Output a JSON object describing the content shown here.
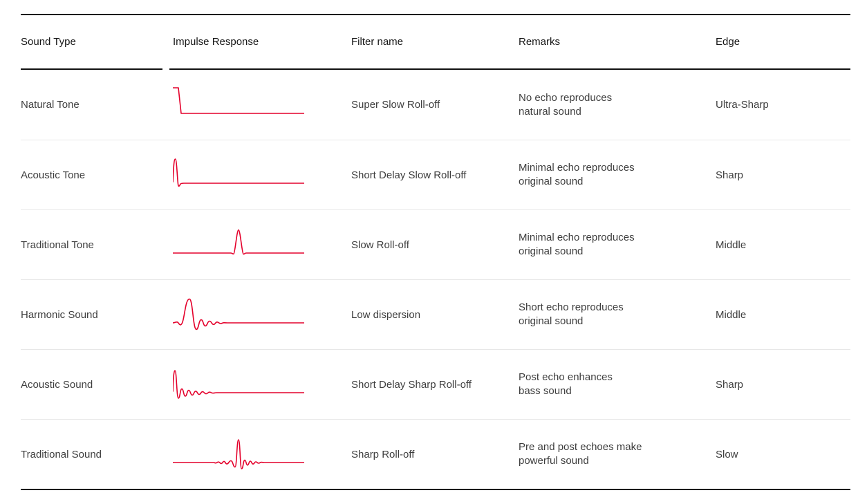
{
  "accent_color": "#e4002b",
  "table": {
    "headers": {
      "sound_type": "Sound Type",
      "impulse_response": "Impulse Response",
      "filter_name": "Filter name",
      "remarks": "Remarks",
      "edge": "Edge"
    },
    "rows": [
      {
        "sound_type": "Natural Tone",
        "impulse_icon": "step-down",
        "filter_name": "Super Slow Roll-off",
        "remarks": [
          "No echo reproduces",
          "natural sound"
        ],
        "edge": "Ultra-Sharp"
      },
      {
        "sound_type": "Acoustic Tone",
        "impulse_icon": "left-spike",
        "filter_name": "Short Delay Slow Roll-off",
        "remarks": [
          "Minimal echo reproduces",
          "original sound"
        ],
        "edge": "Sharp"
      },
      {
        "sound_type": "Traditional Tone",
        "impulse_icon": "center-spike",
        "filter_name": "Slow Roll-off",
        "remarks": [
          "Minimal echo reproduces",
          "original sound"
        ],
        "edge": "Middle"
      },
      {
        "sound_type": "Harmonic Sound",
        "impulse_icon": "left-sinc-ring",
        "filter_name": "Low dispersion",
        "remarks": [
          "Short echo reproduces",
          "original sound"
        ],
        "edge": "Middle"
      },
      {
        "sound_type": "Acoustic Sound",
        "impulse_icon": "left-spike-ring",
        "filter_name": "Short Delay Sharp Roll-off",
        "remarks": [
          "Post echo enhances",
          "bass sound"
        ],
        "edge": "Sharp"
      },
      {
        "sound_type": "Traditional Sound",
        "impulse_icon": "center-sinc-ring",
        "filter_name": "Sharp Roll-off",
        "remarks": [
          "Pre and post echoes make",
          "powerful sound"
        ],
        "edge": "Slow"
      }
    ]
  }
}
